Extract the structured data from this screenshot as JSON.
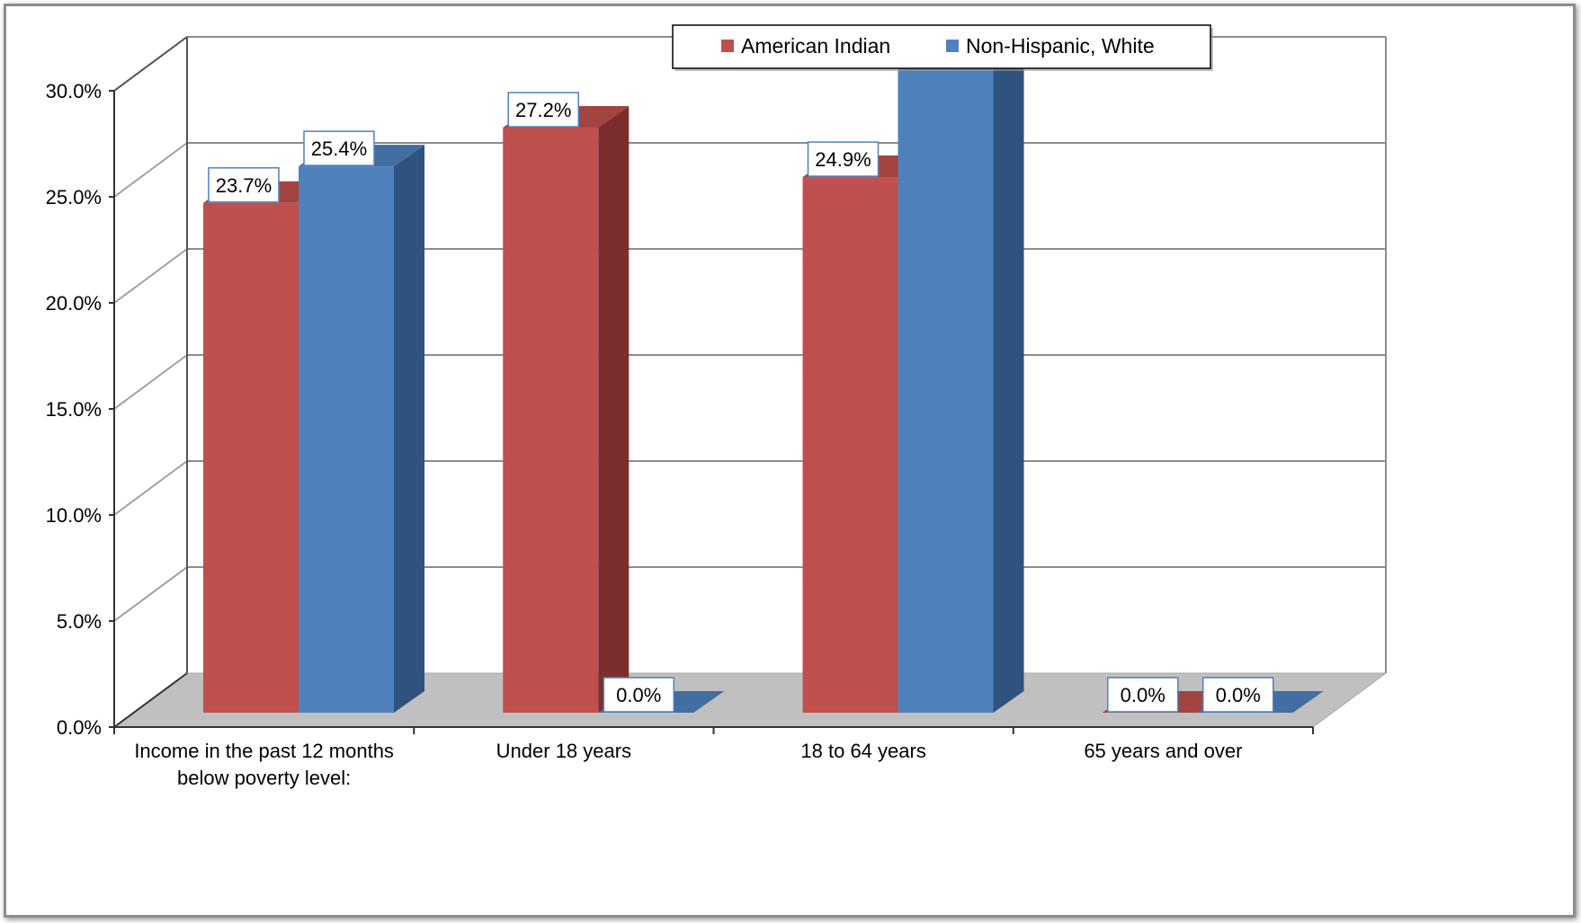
{
  "chart_data": {
    "type": "bar",
    "title": "",
    "xlabel": "",
    "ylabel": "",
    "categories": [
      [
        "Income in the past 12 months",
        "below poverty level:"
      ],
      [
        "Under 18 years"
      ],
      [
        "18 to 64 years"
      ],
      [
        "65 years and over"
      ]
    ],
    "series": [
      {
        "name": "American Indian",
        "values": [
          23.7,
          27.2,
          24.9,
          0.0
        ],
        "color": "#c0504d",
        "dark": "#7c2e2d"
      },
      {
        "name": "Non-Hispanic, White",
        "values": [
          25.4,
          0.0,
          30.2,
          0.0
        ],
        "color": "#4f81bd",
        "dark": "#2f527e"
      }
    ],
    "data_labels": [
      [
        "23.7%",
        "27.2%",
        "24.9%",
        "0.0%"
      ],
      [
        "25.4%",
        "0.0%",
        null,
        "0.0%"
      ]
    ],
    "ylim": [
      0,
      30
    ],
    "yticks": [
      "0.0%",
      "5.0%",
      "10.0%",
      "15.0%",
      "20.0%",
      "25.0%",
      "30.0%"
    ],
    "grid": true,
    "legend_position": "top-center",
    "floor_color": "#c0c0c0"
  }
}
